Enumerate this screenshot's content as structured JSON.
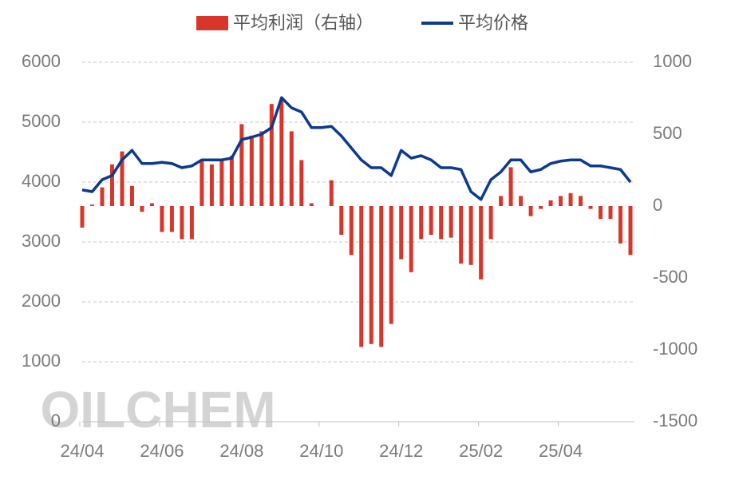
{
  "chart_data": {
    "type": "bar-line",
    "watermark": "OILCHEM",
    "categories": [
      "24/04",
      null,
      null,
      null,
      null,
      null,
      null,
      null,
      "24/06",
      null,
      null,
      null,
      null,
      null,
      null,
      null,
      "24/08",
      null,
      null,
      null,
      null,
      null,
      null,
      null,
      "24/10",
      null,
      null,
      null,
      null,
      null,
      null,
      null,
      "24/12",
      null,
      null,
      null,
      null,
      null,
      null,
      null,
      "25/02",
      null,
      null,
      null,
      null,
      null,
      null,
      null,
      "25/04",
      null,
      null,
      null,
      null,
      null,
      null,
      null
    ],
    "series": [
      {
        "name": "平均利润（右轴）",
        "type": "bar",
        "axis": "y2",
        "color": "#d9362b",
        "values": [
          -150,
          10,
          130,
          290,
          380,
          140,
          -40,
          20,
          -180,
          -180,
          -230,
          -230,
          320,
          290,
          320,
          350,
          570,
          490,
          520,
          710,
          740,
          520,
          320,
          20,
          0,
          180,
          -200,
          -340,
          -980,
          -960,
          -980,
          -820,
          -370,
          -460,
          -230,
          -200,
          -230,
          -220,
          -400,
          -410,
          -510,
          -230,
          70,
          270,
          70,
          -70,
          -20,
          40,
          70,
          90,
          70,
          -20,
          -90,
          -90,
          -260,
          -340
        ]
      },
      {
        "name": "平均价格",
        "type": "line",
        "color": "#0b3a8e",
        "values": [
          3870,
          3840,
          4040,
          4110,
          4370,
          4530,
          4310,
          4310,
          4330,
          4310,
          4240,
          4270,
          4370,
          4370,
          4370,
          4400,
          4710,
          4750,
          4800,
          4910,
          5410,
          5240,
          5170,
          4910,
          4910,
          4930,
          4770,
          4570,
          4370,
          4240,
          4240,
          4110,
          4530,
          4400,
          4440,
          4370,
          4240,
          4240,
          4210,
          3840,
          3710,
          4040,
          4170,
          4370,
          4370,
          4170,
          4210,
          4310,
          4350,
          4370,
          4370,
          4270,
          4270,
          4240,
          4210,
          4000
        ]
      }
    ],
    "ylim": [
      0,
      6000
    ],
    "yticks": [
      0,
      1000,
      2000,
      3000,
      4000,
      5000,
      6000
    ],
    "y2lim": [
      -1500,
      1000
    ],
    "y2ticks": [
      -1500,
      -1000,
      -500,
      0,
      500,
      1000
    ],
    "grid": true
  }
}
